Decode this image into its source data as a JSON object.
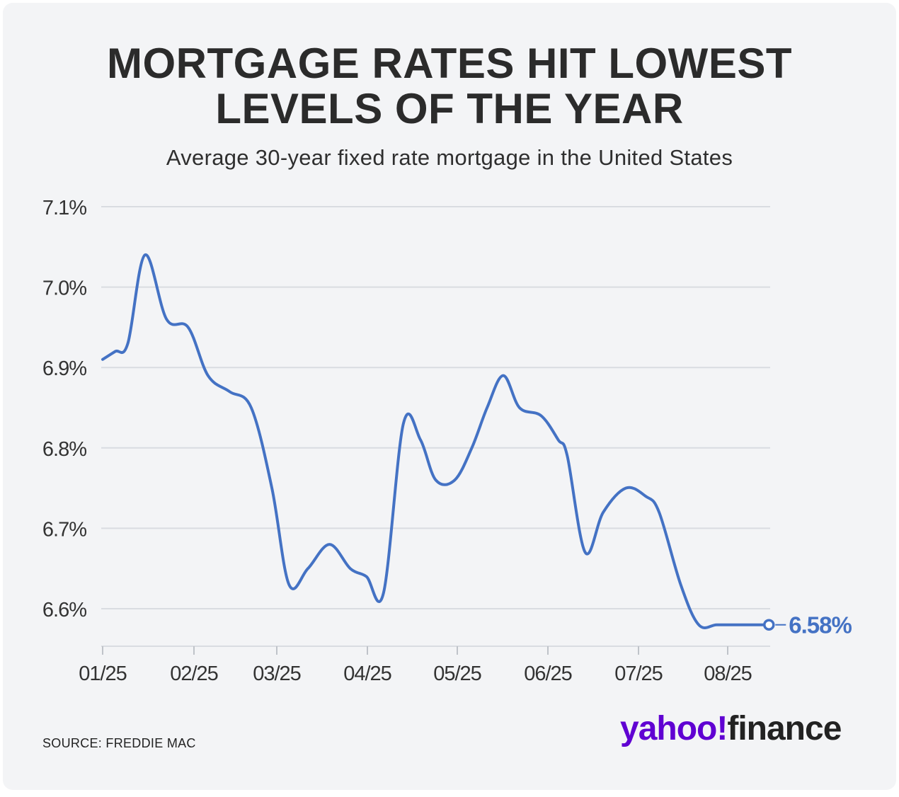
{
  "header": {
    "title_line1": "MORTGAGE RATES HIT LOWEST",
    "title_line2": "LEVELS OF THE YEAR",
    "subtitle": "Average 30-year fixed rate mortgage in the United States"
  },
  "chart_data": {
    "type": "line",
    "title": "MORTGAGE RATES HIT LOWEST LEVELS OF THE YEAR",
    "subtitle": "Average 30-year fixed rate mortgage in the United States",
    "xlabel": "",
    "ylabel": "",
    "x_ticks": [
      "01/25",
      "02/25",
      "03/25",
      "04/25",
      "05/25",
      "06/25",
      "07/25",
      "08/25"
    ],
    "y_ticks": [
      "6.6%",
      "6.7%",
      "6.8%",
      "6.9%",
      "7.0%",
      "7.1%"
    ],
    "y_tick_values": [
      6.6,
      6.7,
      6.8,
      6.9,
      7.0,
      7.1
    ],
    "ylim": [
      6.55,
      7.1
    ],
    "xlim": [
      0,
      7.4
    ],
    "grid": true,
    "series": [
      {
        "name": "30-year fixed rate",
        "color": "#4472c4",
        "x": [
          0.0,
          0.14,
          0.28,
          0.47,
          0.71,
          0.95,
          1.17,
          1.41,
          1.65,
          1.88,
          2.07,
          2.28,
          2.52,
          2.75,
          2.93,
          3.12,
          3.34,
          3.53,
          3.7,
          3.91,
          4.1,
          4.27,
          4.45,
          4.63,
          4.87,
          5.06,
          5.16,
          5.36,
          5.56,
          5.81,
          6.03,
          6.18,
          6.42,
          6.62,
          6.82,
          7.05,
          7.25,
          7.4
        ],
        "values": [
          6.91,
          6.92,
          6.93,
          7.04,
          6.96,
          6.95,
          6.89,
          6.87,
          6.85,
          6.75,
          6.63,
          6.65,
          6.68,
          6.65,
          6.64,
          6.62,
          6.83,
          6.81,
          6.76,
          6.76,
          6.8,
          6.85,
          6.89,
          6.85,
          6.84,
          6.81,
          6.79,
          6.67,
          6.72,
          6.75,
          6.74,
          6.72,
          6.63,
          6.58,
          6.58,
          6.58,
          6.58,
          6.58
        ]
      }
    ],
    "last_point": {
      "x": 7.4,
      "value": 6.58,
      "label": "6.58%"
    }
  },
  "footer": {
    "source": "SOURCE: FREDDIE MAC",
    "logo_brand": "yahoo!",
    "logo_product": "finance"
  },
  "colors": {
    "background": "#f3f4f6",
    "line": "#4472c4",
    "grid": "#d9dce1",
    "logo_purple": "#6001d2"
  }
}
